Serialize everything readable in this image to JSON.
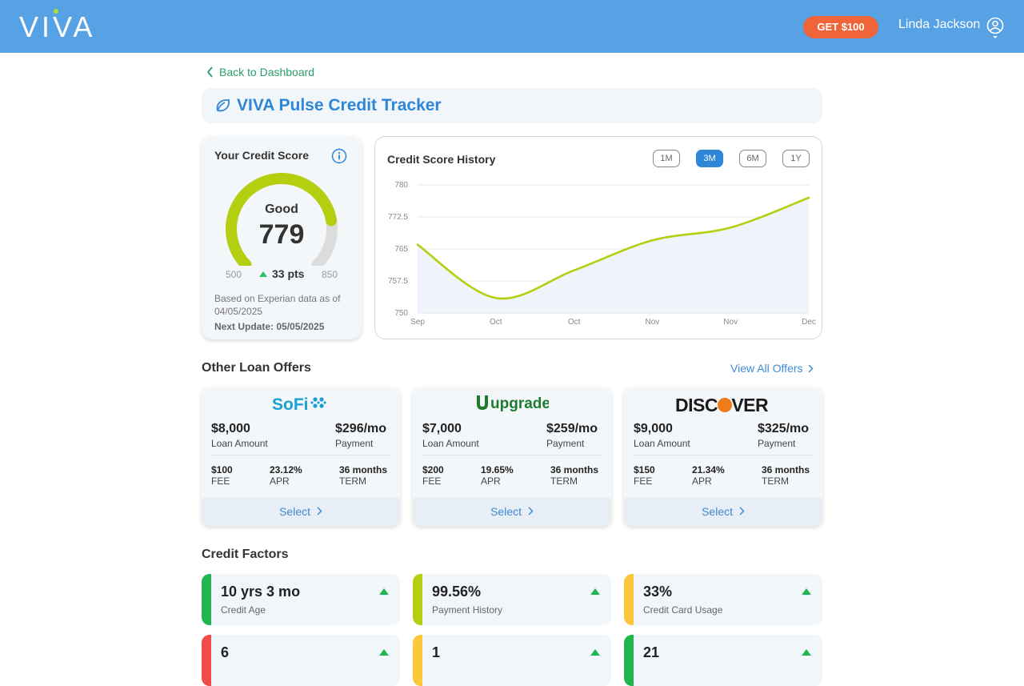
{
  "header": {
    "logo_text": "VIVA",
    "cta_label": "GET $100",
    "user_name": "Linda Jackson"
  },
  "nav": {
    "back_label": "Back to Dashboard"
  },
  "page_title": "VIVA Pulse Credit Tracker",
  "score": {
    "label": "Your Credit Score",
    "state": "Good",
    "value": "779",
    "min": "500",
    "max": "850",
    "delta": "33 pts",
    "based_on": "Based on Experian data as of 04/05/2025",
    "next_update": "Next Update: 05/05/2025",
    "colors": {
      "arc": "#b4cf0f",
      "track": "#dcdcdc",
      "delta_arrow": "#27c36a"
    }
  },
  "history": {
    "label": "Credit Score History",
    "ranges": [
      "1M",
      "3M",
      "6M",
      "1Y"
    ],
    "active_range": "3M"
  },
  "chart_data": {
    "type": "area",
    "title": "Credit Score History",
    "xlabel": "",
    "ylabel": "",
    "x": [
      "Sep",
      "Oct",
      "Oct",
      "Nov",
      "Nov",
      "Dec"
    ],
    "series": [
      {
        "values": [
          766,
          753.5,
          760,
          767,
          770,
          777
        ]
      }
    ],
    "yticks": [
      "780",
      "772.5",
      "765",
      "757.5",
      "750"
    ],
    "ylim": [
      750,
      780
    ],
    "grid": true,
    "colors": {
      "line": "#b4cf0f",
      "fill": "#eef4fa"
    }
  },
  "offers_section": {
    "title": "Other Loan Offers",
    "view_all": "View All Offers"
  },
  "offers": [
    {
      "brand": "SoFi",
      "amount": "$8,000",
      "amount_label": "Loan Amount",
      "payment": "$296/mo",
      "payment_label": "Payment",
      "fee": "$100",
      "fee_label": "FEE",
      "apr": "23.12%",
      "apr_label": "APR",
      "term": "36 months",
      "term_label": "TERM",
      "select_label": "Select",
      "brand_color": "#1aa0d2"
    },
    {
      "brand": "upgrade",
      "amount": "$7,000",
      "amount_label": "Loan Amount",
      "payment": "$259/mo",
      "payment_label": "Payment",
      "fee": "$200",
      "fee_label": "FEE",
      "apr": "19.65%",
      "apr_label": "APR",
      "term": "36 months",
      "term_label": "TERM",
      "select_label": "Select",
      "brand_color": "#1f7a2f"
    },
    {
      "brand": "DISCOVER",
      "amount": "$9,000",
      "amount_label": "Loan Amount",
      "payment": "$325/mo",
      "payment_label": "Payment",
      "fee": "$150",
      "fee_label": "FEE",
      "apr": "21.34%",
      "apr_label": "APR",
      "term": "36 months",
      "term_label": "TERM",
      "select_label": "Select",
      "brand_color": "#1a1a1a"
    }
  ],
  "factors_section": {
    "title": "Credit Factors"
  },
  "factors": [
    {
      "value": "10 yrs 3 mo",
      "label": "Credit Age",
      "color": "#1fb64f"
    },
    {
      "value": "99.56%",
      "label": "Payment History",
      "color": "#b4cf0f"
    },
    {
      "value": "33%",
      "label": "Credit Card Usage",
      "color": "#fcc73b"
    },
    {
      "value": "6",
      "label": "",
      "color": "#f24b4b"
    },
    {
      "value": "1",
      "label": "",
      "color": "#fcc73b"
    },
    {
      "value": "21",
      "label": "",
      "color": "#1fb64f"
    }
  ]
}
